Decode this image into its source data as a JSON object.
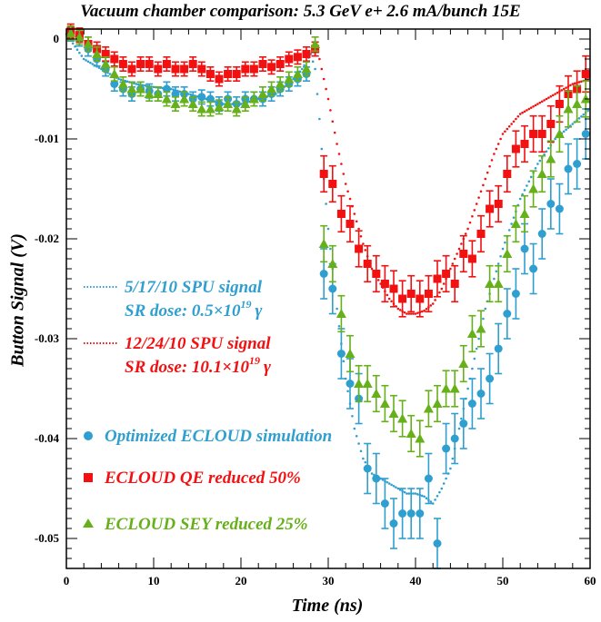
{
  "chart_data": {
    "type": "scatter",
    "title": "Vacuum chamber comparison: 5.3 GeV  e+  2.6 mA/bunch 15E",
    "xlabel": "Time (ns)",
    "ylabel": "Button Signal (V)",
    "xlim": [
      0,
      60
    ],
    "ylim": [
      -0.053,
      0.001
    ],
    "x_ticks": [
      "0",
      "10",
      "20",
      "30",
      "40",
      "50",
      "60"
    ],
    "y_ticks": [
      "0",
      "-0.01",
      "-0.02",
      "-0.03",
      "-0.04",
      "-0.05"
    ],
    "colors": {
      "blue": "#2f9fd0",
      "red": "#f21010",
      "green": "#66b01a"
    },
    "legend": {
      "spu_517": {
        "line1": "5/17/10 SPU signal",
        "dose_prefix": "SR dose: 0.5×10",
        "dose_exp": "19",
        "dose_unit": "γ"
      },
      "spu_1224": {
        "line1": "12/24/10 SPU signal",
        "dose_prefix": "SR dose: 10.1×10",
        "dose_exp": "19",
        "dose_unit": "γ"
      },
      "sim_blue": "Optimized ECLOUD simulation",
      "sim_red": "ECLOUD QE reduced 50%",
      "sim_green": "ECLOUD SEY reduced 25%"
    },
    "series": [
      {
        "name": "5/17/10 SPU signal",
        "style": "dotted",
        "color": "blue",
        "x": [
          0,
          2,
          4,
          6,
          8,
          10,
          12,
          14,
          16,
          18,
          20,
          22,
          24,
          26,
          27,
          28,
          28.5,
          29,
          29.5,
          30,
          31,
          32,
          33,
          34,
          35,
          36,
          37,
          38,
          39,
          40,
          41,
          42,
          43,
          44,
          45,
          46,
          47,
          48,
          49,
          50,
          52,
          54,
          56,
          58,
          60
        ],
        "y": [
          0.0005,
          -0.002,
          -0.003,
          -0.004,
          -0.0045,
          -0.0048,
          -0.005,
          -0.0055,
          -0.006,
          -0.0065,
          -0.0065,
          -0.006,
          -0.0055,
          -0.004,
          -0.003,
          -0.0015,
          -0.003,
          -0.008,
          -0.014,
          -0.019,
          -0.027,
          -0.034,
          -0.039,
          -0.042,
          -0.0435,
          -0.044,
          -0.0445,
          -0.045,
          -0.0455,
          -0.0455,
          -0.0458,
          -0.0465,
          -0.045,
          -0.043,
          -0.039,
          -0.035,
          -0.031,
          -0.027,
          -0.024,
          -0.021,
          -0.016,
          -0.0125,
          -0.01,
          -0.0085,
          -0.007
        ]
      },
      {
        "name": "12/24/10 SPU signal",
        "style": "dotted",
        "color": "red",
        "x": [
          29,
          29.5,
          30,
          31,
          32,
          33,
          34,
          35,
          36,
          37,
          38,
          39,
          40,
          41,
          42,
          43,
          44,
          45,
          46,
          47,
          48,
          49,
          50,
          52,
          54,
          56,
          58,
          60
        ],
        "y": [
          -0.002,
          -0.004,
          -0.006,
          -0.0105,
          -0.0145,
          -0.0175,
          -0.0205,
          -0.023,
          -0.0245,
          -0.026,
          -0.027,
          -0.0275,
          -0.0275,
          -0.0272,
          -0.0265,
          -0.025,
          -0.023,
          -0.021,
          -0.019,
          -0.0165,
          -0.014,
          -0.0115,
          -0.0095,
          -0.0075,
          -0.0065,
          -0.0055,
          -0.0045,
          -0.004
        ]
      },
      {
        "name": "Optimized ECLOUD simulation",
        "style": "circle",
        "color": "blue",
        "x": [
          0.5,
          1.5,
          2.5,
          3.5,
          4.5,
          5.5,
          6.5,
          7.5,
          8.5,
          9.5,
          10.5,
          11.5,
          12.5,
          13.5,
          14.5,
          15.5,
          16.5,
          17.5,
          18.5,
          19.5,
          20.5,
          21.5,
          22.5,
          23.5,
          24.5,
          25.5,
          26.5,
          27.5,
          28.5,
          29.5,
          30.5,
          31.5,
          32.5,
          33.5,
          34.5,
          35.5,
          36.5,
          37.5,
          38.5,
          39.5,
          40.5,
          41.5,
          42.5,
          43.5,
          44.5,
          45.5,
          46.5,
          47.5,
          48.5,
          49.5,
          50.5,
          51.5,
          52.5,
          53.5,
          54.5,
          55.5,
          56.5,
          57.5,
          58.5,
          59.5
        ],
        "y": [
          0.0005,
          0.0,
          -0.001,
          -0.002,
          -0.003,
          -0.0045,
          -0.005,
          -0.0055,
          -0.005,
          -0.0052,
          -0.0055,
          -0.005,
          -0.0055,
          -0.0055,
          -0.006,
          -0.0058,
          -0.006,
          -0.0065,
          -0.006,
          -0.0065,
          -0.006,
          -0.006,
          -0.006,
          -0.0055,
          -0.005,
          -0.0045,
          -0.004,
          -0.0035,
          -0.001,
          -0.0235,
          -0.025,
          -0.0315,
          -0.0345,
          -0.036,
          -0.043,
          -0.044,
          -0.0465,
          -0.0485,
          -0.0475,
          -0.0475,
          -0.0475,
          -0.044,
          -0.0505,
          -0.041,
          -0.04,
          -0.0385,
          -0.0365,
          -0.0355,
          -0.034,
          -0.031,
          -0.0275,
          -0.0255,
          -0.021,
          -0.023,
          -0.0195,
          -0.0165,
          -0.017,
          -0.013,
          -0.0125,
          -0.0095
        ]
      },
      {
        "name": "ECLOUD QE reduced 50%",
        "style": "square",
        "color": "red",
        "x": [
          0.5,
          1.5,
          2.5,
          3.5,
          4.5,
          5.5,
          6.5,
          7.5,
          8.5,
          9.5,
          10.5,
          11.5,
          12.5,
          13.5,
          14.5,
          15.5,
          16.5,
          17.5,
          18.5,
          19.5,
          20.5,
          21.5,
          22.5,
          23.5,
          24.5,
          25.5,
          26.5,
          27.5,
          28.5,
          29.5,
          30.5,
          31.5,
          32.5,
          33.5,
          34.5,
          35.5,
          36.5,
          37.5,
          38.5,
          39.5,
          40.5,
          41.5,
          42.5,
          43.5,
          44.5,
          45.5,
          46.5,
          47.5,
          48.5,
          49.5,
          50.5,
          51.5,
          52.5,
          53.5,
          54.5,
          55.5,
          56.5,
          57.5,
          58.5,
          59.5
        ],
        "y": [
          0.0008,
          0.0004,
          -0.0005,
          -0.001,
          -0.0015,
          -0.002,
          -0.0025,
          -0.003,
          -0.0025,
          -0.0025,
          -0.003,
          -0.0025,
          -0.003,
          -0.003,
          -0.0025,
          -0.003,
          -0.0035,
          -0.004,
          -0.0035,
          -0.0035,
          -0.003,
          -0.003,
          -0.0025,
          -0.0028,
          -0.0025,
          -0.002,
          -0.0018,
          -0.0015,
          -0.001,
          -0.0135,
          -0.0145,
          -0.0175,
          -0.0185,
          -0.021,
          -0.0225,
          -0.0235,
          -0.0245,
          -0.025,
          -0.026,
          -0.0255,
          -0.026,
          -0.0255,
          -0.024,
          -0.0235,
          -0.0245,
          -0.0215,
          -0.022,
          -0.0195,
          -0.017,
          -0.0165,
          -0.0135,
          -0.011,
          -0.0105,
          -0.0095,
          -0.0095,
          -0.0085,
          -0.0065,
          -0.0055,
          -0.005,
          -0.0035
        ]
      },
      {
        "name": "ECLOUD SEY reduced 25%",
        "style": "triangle",
        "color": "green",
        "x": [
          0.5,
          1.5,
          2.5,
          3.5,
          4.5,
          5.5,
          6.5,
          7.5,
          8.5,
          9.5,
          10.5,
          11.5,
          12.5,
          13.5,
          14.5,
          15.5,
          16.5,
          17.5,
          18.5,
          19.5,
          20.5,
          21.5,
          22.5,
          23.5,
          24.5,
          25.5,
          26.5,
          27.5,
          28.5,
          29.5,
          30.5,
          31.5,
          32.5,
          33.5,
          34.5,
          35.5,
          36.5,
          37.5,
          38.5,
          39.5,
          40.5,
          41.5,
          42.5,
          43.5,
          44.5,
          45.5,
          46.5,
          47.5,
          48.5,
          49.5,
          50.5,
          51.5,
          52.5,
          53.5,
          54.5,
          55.5,
          56.5,
          57.5,
          58.5,
          59.5
        ],
        "y": [
          0.0006,
          0.0002,
          -0.0005,
          -0.0015,
          -0.0025,
          -0.0035,
          -0.0045,
          -0.005,
          -0.005,
          -0.0055,
          -0.0055,
          -0.006,
          -0.0065,
          -0.006,
          -0.0065,
          -0.007,
          -0.007,
          -0.0068,
          -0.0065,
          -0.007,
          -0.0065,
          -0.006,
          -0.0055,
          -0.005,
          -0.0045,
          -0.004,
          -0.0035,
          -0.003,
          -0.0005,
          -0.0205,
          -0.0225,
          -0.0275,
          -0.0315,
          -0.0345,
          -0.0345,
          -0.0355,
          -0.0365,
          -0.0375,
          -0.038,
          -0.0395,
          -0.04,
          -0.037,
          -0.0365,
          -0.035,
          -0.035,
          -0.0325,
          -0.0295,
          -0.029,
          -0.0245,
          -0.0245,
          -0.0215,
          -0.0185,
          -0.0175,
          -0.015,
          -0.0135,
          -0.012,
          -0.0095,
          -0.007,
          -0.0065,
          -0.006
        ]
      }
    ]
  }
}
